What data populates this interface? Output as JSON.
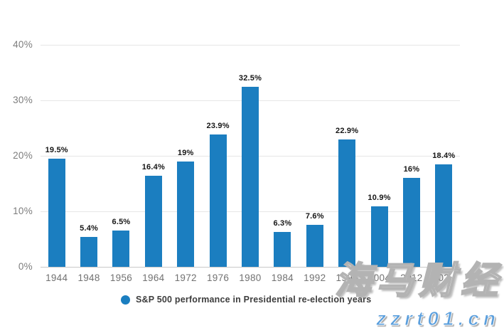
{
  "chart_data": {
    "type": "bar",
    "title": "",
    "xlabel": "",
    "ylabel": "",
    "categories": [
      "1944",
      "1948",
      "1956",
      "1964",
      "1972",
      "1976",
      "1980",
      "1984",
      "1992",
      "1996",
      "2004",
      "2012",
      "2020"
    ],
    "values": [
      19.5,
      5.4,
      6.5,
      16.4,
      19,
      23.9,
      32.5,
      6.3,
      7.6,
      22.9,
      10.9,
      16,
      18.4
    ],
    "value_labels": [
      "19.5%",
      "5.4%",
      "6.5%",
      "16.4%",
      "19%",
      "23.9%",
      "32.5%",
      "6.3%",
      "7.6%",
      "22.9%",
      "10.9%",
      "16%",
      "18.4%"
    ],
    "ylim": [
      0,
      40
    ],
    "yticks": [
      0,
      10,
      20,
      30,
      40
    ],
    "ytick_labels": [
      "0%",
      "10%",
      "20%",
      "30%",
      "40%"
    ],
    "grid": true,
    "legend_position": "bottom",
    "legend_entries": [
      "S&P 500 performance in Presidential re-election years"
    ],
    "bar_color": "#1b7ec0"
  },
  "legend": {
    "label": "S&P 500 performance in Presidential re-election years",
    "marker_color": "#1b7ec0"
  },
  "watermark": {
    "line1": "海马财经",
    "line2": "zzrt01.cn"
  },
  "colors": {
    "bar": "#1b7ec0",
    "gridline": "#e6e6e6",
    "axis_text": "#7d7d7d",
    "data_label": "#161616",
    "watermark_blue": "#5b9fdd"
  }
}
